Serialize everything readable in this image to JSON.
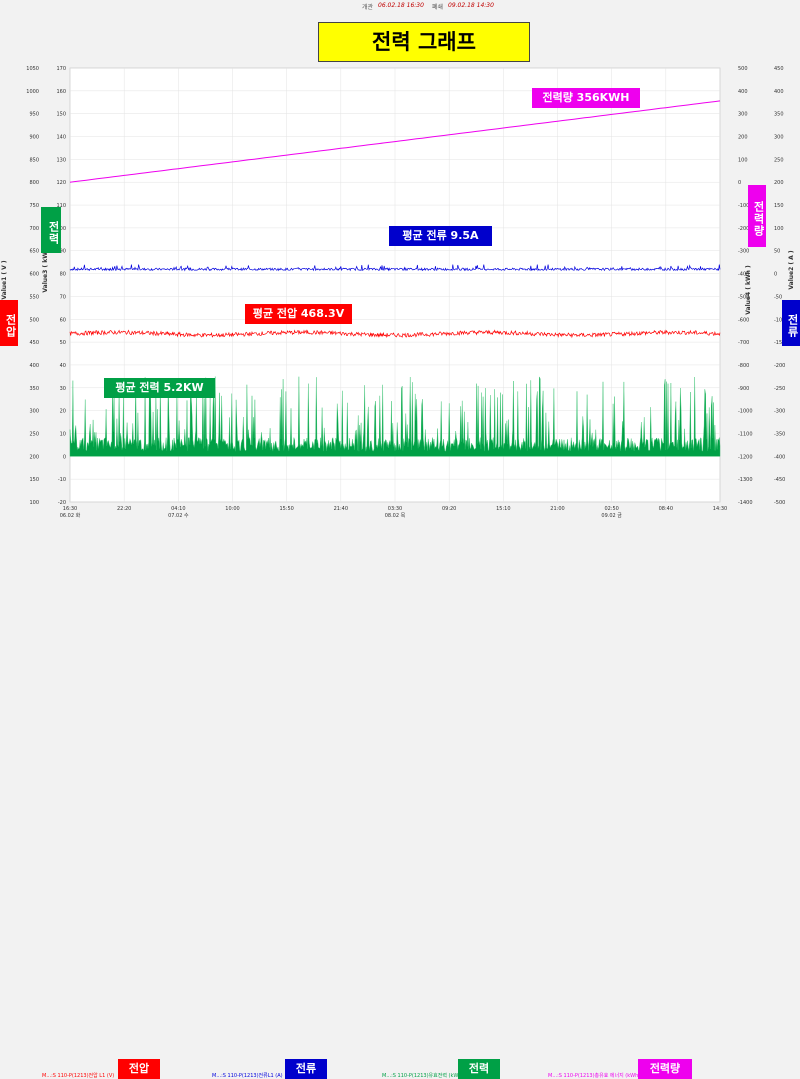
{
  "period": {
    "start_label": "개관",
    "start_value": "06.02.18 16:30",
    "end_label": "폐쇄",
    "end_value": "09.02.18 14:30"
  },
  "title": "전력 그래프",
  "labels": {
    "energy": "전력량 356KWH",
    "current": "평균 전류 9.5A",
    "voltage": "평균 전압 468.3V",
    "power": "평균 전력 5.2KW"
  },
  "side_labels": {
    "left_power": "전력",
    "left_voltage": "전압",
    "right_energy": "전력량",
    "right_current": "전류"
  },
  "legend": [
    {
      "text": "M...:S 110-P(1213)전압 L1 (V)",
      "box": "전압",
      "color": "#ff0000"
    },
    {
      "text": "M...:S 110-P(1213)전류L1 (A)",
      "box": "전류",
      "color": "#0000dd"
    },
    {
      "text": "M...:S 110-P(1213)유효전력 (kW)",
      "box": "전력",
      "color": "#00a046"
    },
    {
      "text": "M...:S 110-P(1213)총유효 에너지 (kWh)",
      "box": "전력량",
      "color": "#ee00ee"
    }
  ],
  "colors": {
    "voltage": "#ff0000",
    "current": "#0000dd",
    "power": "#00a046",
    "energy": "#ee00ee",
    "title_bg": "#ffff00"
  },
  "chart_data": {
    "type": "line",
    "x_ticks": [
      "16:30",
      "22:20",
      "04:10",
      "10:00",
      "15:50",
      "21:40",
      "03:30",
      "09:20",
      "15:10",
      "21:00",
      "02:50",
      "08:40",
      "14:30"
    ],
    "x_dates": [
      {
        "index": 0,
        "label": "06.02 화"
      },
      {
        "index": 2,
        "label": "07.02 수"
      },
      {
        "index": 6,
        "label": "08.02 목"
      },
      {
        "index": 10,
        "label": "09.02 금"
      }
    ],
    "axes": {
      "voltage": {
        "label": "Value1 ( V )",
        "ylim": [
          100,
          1050
        ],
        "ticks": [
          100,
          150,
          200,
          250,
          300,
          350,
          400,
          450,
          500,
          550,
          600,
          650,
          700,
          750,
          800,
          850,
          900,
          950,
          1000,
          1050
        ]
      },
      "kw": {
        "label": "Value3 ( kW )",
        "ylim": [
          -20,
          170
        ],
        "ticks": [
          -20,
          -10,
          0,
          10,
          20,
          30,
          40,
          50,
          60,
          70,
          80,
          90,
          100,
          110,
          120,
          130,
          140,
          150,
          160,
          170
        ]
      },
      "kwh": {
        "label": "Value4 ( kWh )",
        "ylim": [
          -1400,
          500
        ],
        "ticks": [
          -1400,
          -1300,
          -1200,
          -1100,
          -1000,
          -900,
          -800,
          -700,
          -600,
          -500,
          -400,
          -300,
          -200,
          -100,
          0,
          100,
          200,
          300,
          400,
          500
        ]
      },
      "amp": {
        "label": "Value2 ( A )",
        "ylim": [
          -500,
          450
        ],
        "ticks": [
          -500,
          -450,
          -400,
          -350,
          -300,
          -250,
          -200,
          -150,
          -100,
          -50,
          0,
          50,
          100,
          150,
          200,
          250,
          300,
          350,
          400,
          450
        ]
      }
    },
    "series": [
      {
        "name": "전력량",
        "axis": "kwh",
        "start": 0,
        "end": 356
      },
      {
        "name": "전류",
        "axis": "amp",
        "mean": 9.5,
        "min": 4,
        "max": 20
      },
      {
        "name": "전압",
        "axis": "voltage",
        "mean": 468.3,
        "min": 455,
        "max": 485
      },
      {
        "name": "전력",
        "axis": "kw",
        "mean": 5.2,
        "min": 0,
        "max": 35
      }
    ],
    "grid": true
  }
}
